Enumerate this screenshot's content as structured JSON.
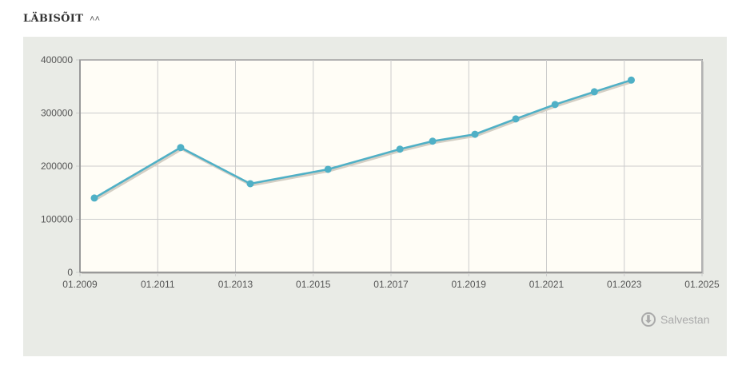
{
  "section": {
    "title": "LÄBISÕIT",
    "collapse_icon": "double-chevron-up-icon"
  },
  "save": {
    "label": "Salvestan",
    "icon": "download-icon"
  },
  "chart_data": {
    "type": "line",
    "title": "",
    "xlabel": "",
    "ylabel": "",
    "xlim": [
      2009,
      2025
    ],
    "ylim": [
      0,
      400000
    ],
    "x_ticks": [
      2009,
      2011,
      2013,
      2015,
      2017,
      2019,
      2021,
      2023,
      2025
    ],
    "x_tick_labels": [
      "01.2009",
      "01.2011",
      "01.2013",
      "01.2015",
      "01.2017",
      "01.2019",
      "01.2021",
      "01.2023",
      "01.2025"
    ],
    "y_ticks": [
      0,
      100000,
      200000,
      300000,
      400000
    ],
    "y_tick_labels": [
      "0",
      "100000",
      "200000",
      "300000",
      "400000"
    ],
    "grid": true,
    "series": [
      {
        "name": "Läbisõit",
        "color": "#4fb0c6",
        "x": [
          2009.37,
          2011.59,
          2013.38,
          2015.38,
          2017.23,
          2018.07,
          2019.16,
          2020.21,
          2021.22,
          2022.23,
          2023.18
        ],
        "values": [
          140000,
          235000,
          167000,
          194000,
          232000,
          247000,
          260000,
          289000,
          316000,
          340000,
          362000
        ]
      }
    ]
  }
}
